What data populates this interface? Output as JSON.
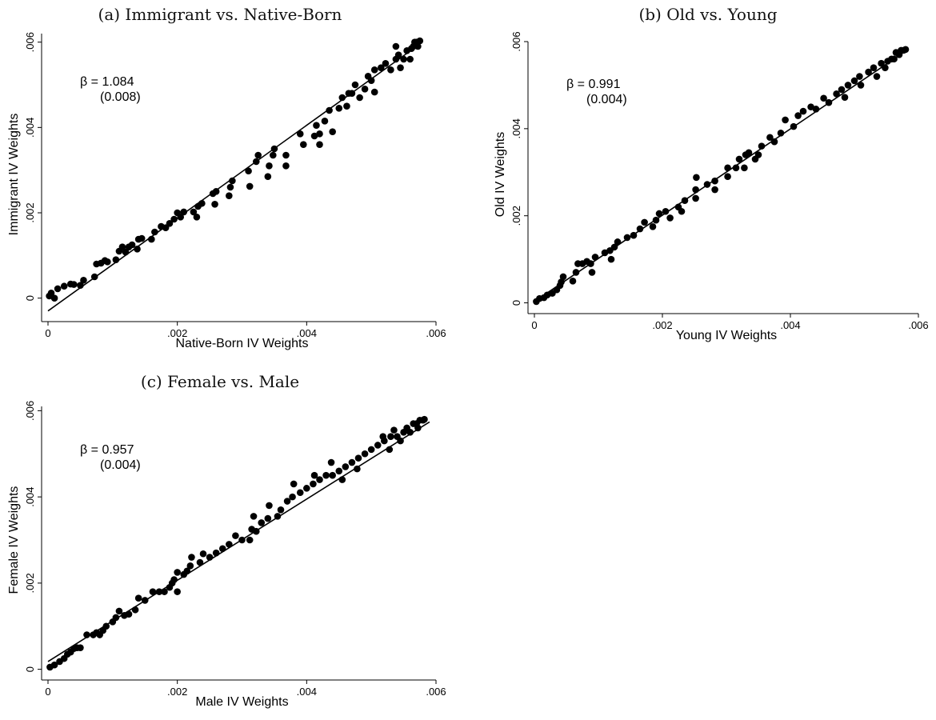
{
  "chart_data": [
    {
      "type": "scatter",
      "title": "(a) Immigrant vs. Native-Born",
      "xlabel": "Native-Born IV Weights",
      "ylabel": "Immigrant IV Weights",
      "xlim": [
        0,
        0.006
      ],
      "ylim": [
        -0.0004,
        0.0062
      ],
      "xticks": [
        0,
        0.002,
        0.004,
        0.006
      ],
      "xtick_labels": [
        "0",
        ".002",
        ".004",
        ".006"
      ],
      "yticks": [
        0,
        0.002,
        0.004,
        0.006
      ],
      "ytick_labels": [
        "0",
        ".002",
        ".004",
        ".006"
      ],
      "annotation": {
        "beta": "β = 1.084",
        "se": "(0.008)"
      },
      "fit_line": {
        "x": [
          0.0,
          0.0057
        ],
        "y": [
          -0.0003,
          0.0059
        ]
      },
      "points": [
        [
          2e-05,
          5e-05
        ],
        [
          5e-05,
          0.00012
        ],
        [
          0.0001,
          0.0
        ],
        [
          0.00015,
          0.00022
        ],
        [
          0.00025,
          0.00028
        ],
        [
          0.00035,
          0.00033
        ],
        [
          0.0004,
          0.00032
        ],
        [
          0.0005,
          0.0003
        ],
        [
          0.00055,
          0.00042
        ],
        [
          0.00072,
          0.0005
        ],
        [
          0.00075,
          0.0008
        ],
        [
          0.00082,
          0.00082
        ],
        [
          0.00088,
          0.00088
        ],
        [
          0.00092,
          0.00085
        ],
        [
          0.00105,
          0.0009
        ],
        [
          0.0011,
          0.0011
        ],
        [
          0.00115,
          0.0012
        ],
        [
          0.0012,
          0.00108
        ],
        [
          0.00125,
          0.0012
        ],
        [
          0.0013,
          0.00125
        ],
        [
          0.00138,
          0.00115
        ],
        [
          0.0014,
          0.00138
        ],
        [
          0.00145,
          0.0014
        ],
        [
          0.0016,
          0.00138
        ],
        [
          0.00165,
          0.00155
        ],
        [
          0.00175,
          0.00168
        ],
        [
          0.00182,
          0.00165
        ],
        [
          0.00188,
          0.00175
        ],
        [
          0.00195,
          0.00185
        ],
        [
          0.002,
          0.002
        ],
        [
          0.00205,
          0.0019
        ],
        [
          0.0021,
          0.00202
        ],
        [
          0.00225,
          0.00202
        ],
        [
          0.0023,
          0.0019
        ],
        [
          0.00232,
          0.00215
        ],
        [
          0.00238,
          0.00222
        ],
        [
          0.00255,
          0.00245
        ],
        [
          0.00258,
          0.0022
        ],
        [
          0.0026,
          0.0025
        ],
        [
          0.0028,
          0.0024
        ],
        [
          0.00282,
          0.0026
        ],
        [
          0.00285,
          0.00275
        ],
        [
          0.0031,
          0.00298
        ],
        [
          0.00312,
          0.00262
        ],
        [
          0.00322,
          0.0032
        ],
        [
          0.00325,
          0.00335
        ],
        [
          0.0034,
          0.00285
        ],
        [
          0.00342,
          0.0031
        ],
        [
          0.00348,
          0.00335
        ],
        [
          0.0035,
          0.0035
        ],
        [
          0.00368,
          0.0031
        ],
        [
          0.00368,
          0.00335
        ],
        [
          0.0039,
          0.00385
        ],
        [
          0.00395,
          0.0036
        ],
        [
          0.00412,
          0.0038
        ],
        [
          0.00415,
          0.00405
        ],
        [
          0.0042,
          0.0036
        ],
        [
          0.0042,
          0.00385
        ],
        [
          0.00428,
          0.00415
        ],
        [
          0.00435,
          0.0044
        ],
        [
          0.0044,
          0.0039
        ],
        [
          0.0045,
          0.00445
        ],
        [
          0.00455,
          0.0047
        ],
        [
          0.00462,
          0.0045
        ],
        [
          0.00465,
          0.0048
        ],
        [
          0.0047,
          0.0048
        ],
        [
          0.00475,
          0.005
        ],
        [
          0.00482,
          0.0047
        ],
        [
          0.0049,
          0.0049
        ],
        [
          0.00495,
          0.0052
        ],
        [
          0.005,
          0.0051
        ],
        [
          0.00505,
          0.00535
        ],
        [
          0.00505,
          0.00483
        ],
        [
          0.00515,
          0.0054
        ],
        [
          0.00522,
          0.0055
        ],
        [
          0.0053,
          0.00535
        ],
        [
          0.00538,
          0.0056
        ],
        [
          0.00538,
          0.0059
        ],
        [
          0.00542,
          0.0057
        ],
        [
          0.00545,
          0.0054
        ],
        [
          0.0055,
          0.0056
        ],
        [
          0.00555,
          0.0058
        ],
        [
          0.0056,
          0.0056
        ],
        [
          0.00562,
          0.00585
        ],
        [
          0.00565,
          0.0059
        ],
        [
          0.00567,
          0.006
        ],
        [
          0.0057,
          0.006
        ],
        [
          0.00572,
          0.0059
        ],
        [
          0.00575,
          0.00603
        ]
      ]
    },
    {
      "type": "scatter",
      "title": "(b) Old vs. Young",
      "xlabel": "Young IV Weights",
      "ylabel": "Old IV Weights",
      "xlim": [
        0,
        0.006
      ],
      "ylim": [
        -0.0001,
        0.006
      ],
      "xticks": [
        0,
        0.002,
        0.004,
        0.006
      ],
      "xtick_labels": [
        "0",
        ".002",
        ".004",
        ".006"
      ],
      "yticks": [
        0,
        0.002,
        0.004,
        0.006
      ],
      "ytick_labels": [
        "0",
        ".002",
        ".004",
        ".006"
      ],
      "annotation": {
        "beta": "β = 0.991",
        "se": "(0.004)"
      },
      "fit_line": {
        "x": [
          0.0,
          0.0058
        ],
        "y": [
          3e-05,
          0.00578
        ]
      },
      "points": [
        [
          3e-05,
          3e-05
        ],
        [
          8e-05,
          0.0001
        ],
        [
          0.00015,
          0.00012
        ],
        [
          0.0002,
          0.00018
        ],
        [
          0.00028,
          0.00022
        ],
        [
          0.00035,
          0.0003
        ],
        [
          0.0004,
          0.0004
        ],
        [
          0.00042,
          0.00048
        ],
        [
          0.00045,
          0.0006
        ],
        [
          0.0006,
          0.0005
        ],
        [
          0.00065,
          0.0007
        ],
        [
          0.00068,
          0.0009
        ],
        [
          0.00075,
          0.0009
        ],
        [
          0.00082,
          0.00095
        ],
        [
          0.00088,
          0.0009
        ],
        [
          0.0009,
          0.0007
        ],
        [
          0.00095,
          0.00105
        ],
        [
          0.0011,
          0.00115
        ],
        [
          0.00118,
          0.0012
        ],
        [
          0.0012,
          0.001
        ],
        [
          0.00125,
          0.00128
        ],
        [
          0.0013,
          0.0014
        ],
        [
          0.00145,
          0.0015
        ],
        [
          0.00155,
          0.00155
        ],
        [
          0.00165,
          0.0017
        ],
        [
          0.00172,
          0.00185
        ],
        [
          0.00185,
          0.00175
        ],
        [
          0.0019,
          0.0019
        ],
        [
          0.00195,
          0.00205
        ],
        [
          0.00205,
          0.0021
        ],
        [
          0.00212,
          0.00195
        ],
        [
          0.00225,
          0.0022
        ],
        [
          0.0023,
          0.0021
        ],
        [
          0.00235,
          0.00235
        ],
        [
          0.00252,
          0.0024
        ],
        [
          0.00252,
          0.0026
        ],
        [
          0.00253,
          0.00288
        ],
        [
          0.0027,
          0.00272
        ],
        [
          0.00282,
          0.0026
        ],
        [
          0.00282,
          0.0028
        ],
        [
          0.00302,
          0.0031
        ],
        [
          0.00302,
          0.0029
        ],
        [
          0.00315,
          0.0031
        ],
        [
          0.0032,
          0.0033
        ],
        [
          0.00328,
          0.0031
        ],
        [
          0.0033,
          0.0034
        ],
        [
          0.00335,
          0.00345
        ],
        [
          0.00345,
          0.0033
        ],
        [
          0.0035,
          0.0034
        ],
        [
          0.00355,
          0.0036
        ],
        [
          0.00368,
          0.0038
        ],
        [
          0.00375,
          0.0037
        ],
        [
          0.00385,
          0.0039
        ],
        [
          0.00392,
          0.0042
        ],
        [
          0.00405,
          0.00405
        ],
        [
          0.00412,
          0.0043
        ],
        [
          0.0042,
          0.0044
        ],
        [
          0.00432,
          0.0045
        ],
        [
          0.0044,
          0.00445
        ],
        [
          0.00452,
          0.0047
        ],
        [
          0.0046,
          0.0046
        ],
        [
          0.00472,
          0.0048
        ],
        [
          0.0048,
          0.0049
        ],
        [
          0.00485,
          0.00472
        ],
        [
          0.0049,
          0.005
        ],
        [
          0.005,
          0.0051
        ],
        [
          0.00508,
          0.0052
        ],
        [
          0.0051,
          0.005
        ],
        [
          0.00522,
          0.0053
        ],
        [
          0.0053,
          0.0054
        ],
        [
          0.00535,
          0.0052
        ],
        [
          0.00542,
          0.0055
        ],
        [
          0.00548,
          0.0054
        ],
        [
          0.00552,
          0.00555
        ],
        [
          0.00558,
          0.0056
        ],
        [
          0.00562,
          0.0056
        ],
        [
          0.00565,
          0.00575
        ],
        [
          0.0057,
          0.0057
        ],
        [
          0.00573,
          0.0058
        ],
        [
          0.00577,
          0.0058
        ],
        [
          0.0058,
          0.00582
        ]
      ]
    },
    {
      "type": "scatter",
      "title": "(c) Female vs. Male",
      "xlabel": "Male IV Weights",
      "ylabel": "Female IV Weights",
      "xlim": [
        0,
        0.006
      ],
      "ylim": [
        -0.0001,
        0.0061
      ],
      "xticks": [
        0,
        0.002,
        0.004,
        0.006
      ],
      "xtick_labels": [
        "0",
        ".002",
        ".004",
        ".006"
      ],
      "yticks": [
        0,
        0.002,
        0.004,
        0.006
      ],
      "ytick_labels": [
        "0",
        ".002",
        ".004",
        ".006"
      ],
      "annotation": {
        "beta": "β = 0.957",
        "se": "(0.004)"
      },
      "fit_line": {
        "x": [
          0.0,
          0.0059
        ],
        "y": [
          0.00018,
          0.00574
        ]
      },
      "points": [
        [
          3e-05,
          5e-05
        ],
        [
          0.0001,
          0.0001
        ],
        [
          0.00018,
          0.00018
        ],
        [
          0.00025,
          0.00025
        ],
        [
          0.0003,
          0.00035
        ],
        [
          0.00035,
          0.0004
        ],
        [
          0.0004,
          0.00048
        ],
        [
          0.00045,
          0.0005
        ],
        [
          0.0005,
          0.0005
        ],
        [
          0.0006,
          0.0008
        ],
        [
          0.0007,
          0.0008
        ],
        [
          0.00075,
          0.00085
        ],
        [
          0.0008,
          0.0008
        ],
        [
          0.00085,
          0.0009
        ],
        [
          0.0009,
          0.001
        ],
        [
          0.001,
          0.0011
        ],
        [
          0.00105,
          0.0012
        ],
        [
          0.0011,
          0.00135
        ],
        [
          0.00118,
          0.00125
        ],
        [
          0.00125,
          0.00128
        ],
        [
          0.00135,
          0.00138
        ],
        [
          0.0014,
          0.00165
        ],
        [
          0.0015,
          0.0016
        ],
        [
          0.00162,
          0.0018
        ],
        [
          0.00172,
          0.0018
        ],
        [
          0.0018,
          0.0018
        ],
        [
          0.00188,
          0.0019
        ],
        [
          0.00192,
          0.002
        ],
        [
          0.00195,
          0.00208
        ],
        [
          0.002,
          0.0018
        ],
        [
          0.002,
          0.00225
        ],
        [
          0.0021,
          0.0022
        ],
        [
          0.00215,
          0.00228
        ],
        [
          0.0022,
          0.0024
        ],
        [
          0.00222,
          0.0026
        ],
        [
          0.00235,
          0.00248
        ],
        [
          0.0024,
          0.00268
        ],
        [
          0.0025,
          0.0026
        ],
        [
          0.0026,
          0.0027
        ],
        [
          0.0027,
          0.0028
        ],
        [
          0.0028,
          0.0029
        ],
        [
          0.0029,
          0.0031
        ],
        [
          0.003,
          0.003
        ],
        [
          0.00312,
          0.003
        ],
        [
          0.00315,
          0.00325
        ],
        [
          0.00318,
          0.00355
        ],
        [
          0.00322,
          0.0032
        ],
        [
          0.0033,
          0.0034
        ],
        [
          0.0034,
          0.0035
        ],
        [
          0.00342,
          0.0038
        ],
        [
          0.00355,
          0.00355
        ],
        [
          0.0036,
          0.0037
        ],
        [
          0.0037,
          0.0039
        ],
        [
          0.00378,
          0.004
        ],
        [
          0.0038,
          0.0043
        ],
        [
          0.0039,
          0.0041
        ],
        [
          0.004,
          0.0042
        ],
        [
          0.0041,
          0.0043
        ],
        [
          0.00412,
          0.0045
        ],
        [
          0.0042,
          0.0044
        ],
        [
          0.0043,
          0.0045
        ],
        [
          0.00438,
          0.0048
        ],
        [
          0.0044,
          0.0045
        ],
        [
          0.0045,
          0.0046
        ],
        [
          0.00455,
          0.0044
        ],
        [
          0.0046,
          0.0047
        ],
        [
          0.0047,
          0.0048
        ],
        [
          0.00478,
          0.00465
        ],
        [
          0.0048,
          0.0049
        ],
        [
          0.0049,
          0.005
        ],
        [
          0.005,
          0.0051
        ],
        [
          0.0051,
          0.0052
        ],
        [
          0.00518,
          0.0054
        ],
        [
          0.0052,
          0.0053
        ],
        [
          0.00528,
          0.0051
        ],
        [
          0.0053,
          0.0054
        ],
        [
          0.00535,
          0.00555
        ],
        [
          0.0054,
          0.0054
        ],
        [
          0.00545,
          0.0053
        ],
        [
          0.0055,
          0.0055
        ],
        [
          0.00555,
          0.0056
        ],
        [
          0.0056,
          0.0055
        ],
        [
          0.00565,
          0.0057
        ],
        [
          0.0057,
          0.0057
        ],
        [
          0.00572,
          0.0056
        ],
        [
          0.00575,
          0.00578
        ],
        [
          0.0058,
          0.00578
        ],
        [
          0.00582,
          0.0058
        ]
      ]
    }
  ]
}
